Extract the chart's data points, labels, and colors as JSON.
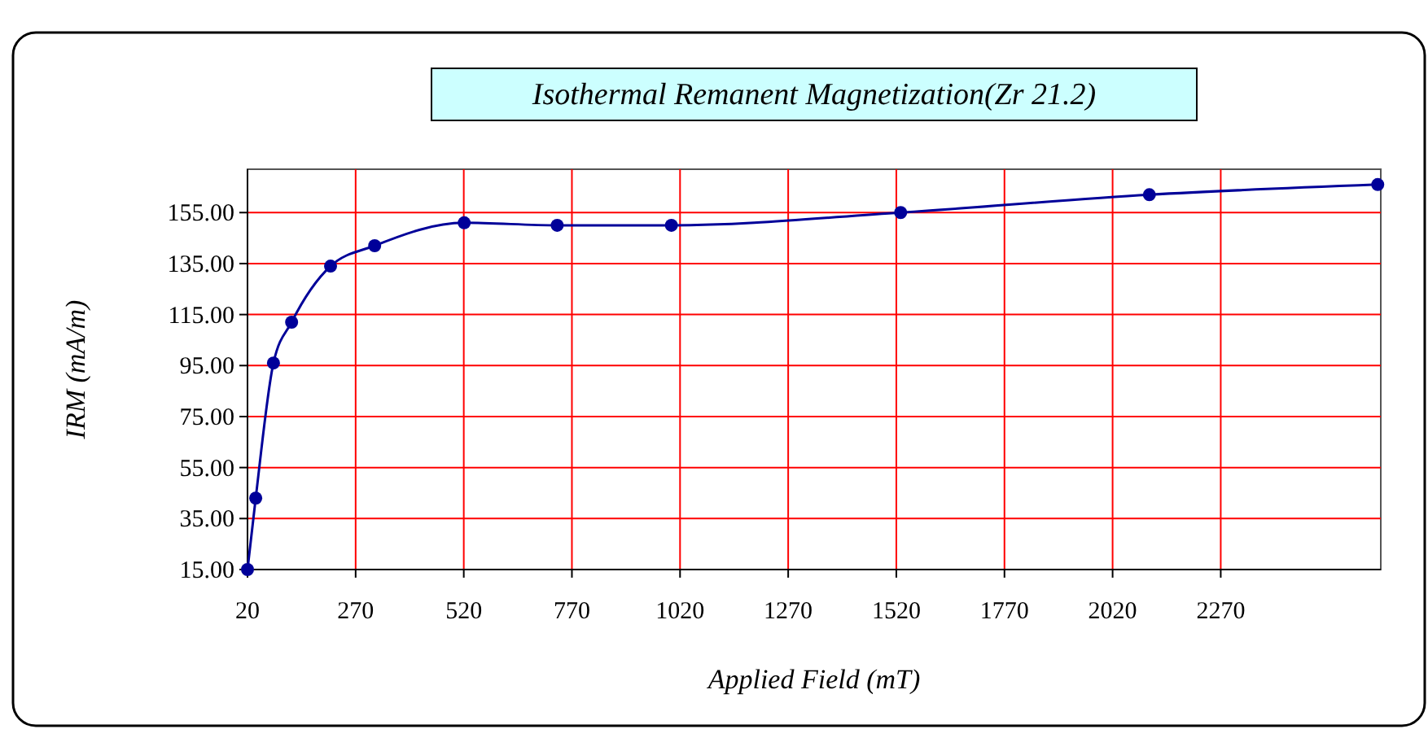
{
  "chart_data": {
    "type": "line",
    "title": "Isothermal Remanent Magnetization(Zr 21.2)",
    "xlabel": "Applied Field (mT)",
    "ylabel": "IRM (mA/m)",
    "x": [
      20,
      39,
      80,
      122,
      212,
      314,
      521,
      736,
      1000,
      1530,
      2105,
      2633
    ],
    "series": [
      {
        "color": "#000099",
        "values": [
          15,
          43,
          96,
          112,
          134,
          142,
          151,
          150,
          150,
          155,
          162,
          166
        ]
      }
    ],
    "xlim": [
      20,
      2640
    ],
    "xticks": [
      20,
      270,
      520,
      770,
      1020,
      1270,
      1520,
      1770,
      2020,
      2270
    ],
    "ylim": [
      15,
      172
    ],
    "yticks": [
      {
        "value": 15,
        "label": "15.00"
      },
      {
        "value": 35,
        "label": "35.00"
      },
      {
        "value": 55,
        "label": "55.00"
      },
      {
        "value": 75,
        "label": "75.00"
      },
      {
        "value": 95,
        "label": "95.00"
      },
      {
        "value": 115,
        "label": "115.00"
      },
      {
        "value": 135,
        "label": "135.00"
      },
      {
        "value": 155,
        "label": "155.00"
      }
    ],
    "grid": true,
    "marker": "circle",
    "line_style": "solid"
  }
}
